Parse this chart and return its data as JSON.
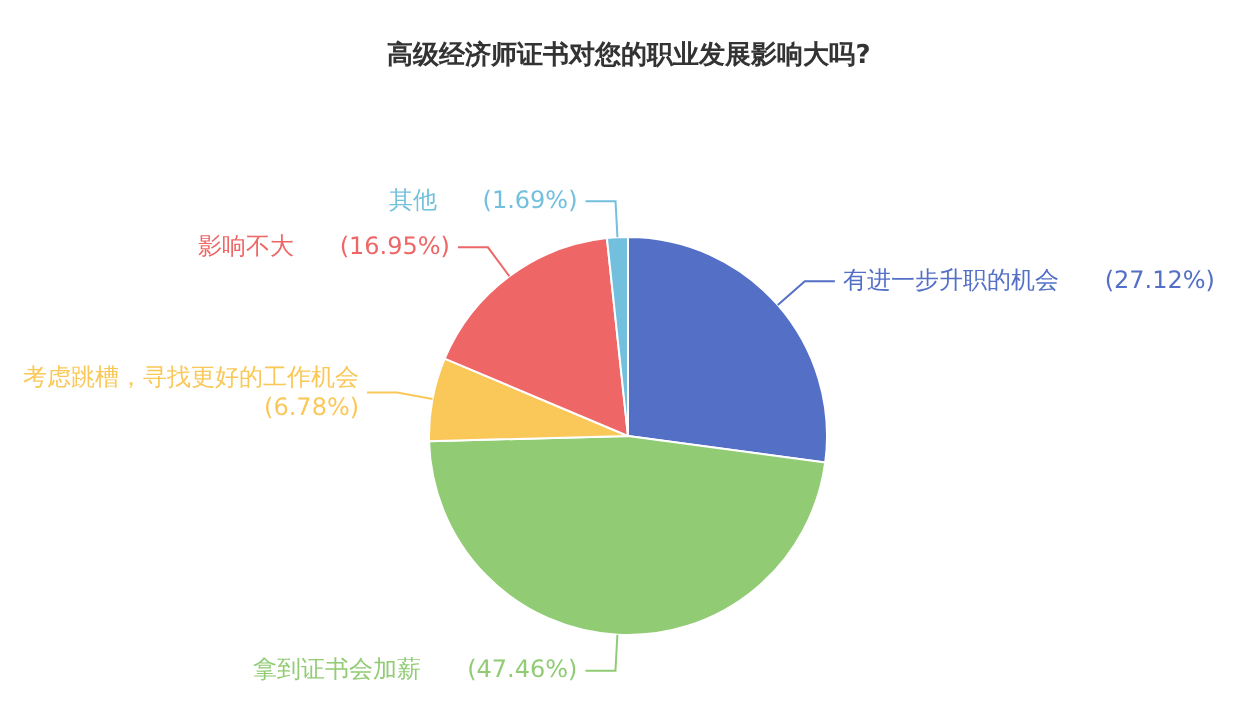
{
  "chart_data": {
    "type": "pie",
    "title": "高级经济师证书对您的职业发展影响大吗?",
    "categories": [
      "有进一步升职的机会",
      "拿到证书会加薪",
      "考虑跳槽，寻找更好的工作机会",
      "影响不大",
      "其他"
    ],
    "values": [
      27.12,
      47.46,
      6.78,
      16.95,
      1.69
    ],
    "colors": [
      "#5470c6",
      "#91cc75",
      "#fac858",
      "#ee6666",
      "#73c0de"
    ],
    "value_labels": [
      "(27.12%)",
      "(47.46%)",
      "(6.78%)",
      "(16.95%)",
      "(1.69%)"
    ],
    "legend": false
  }
}
